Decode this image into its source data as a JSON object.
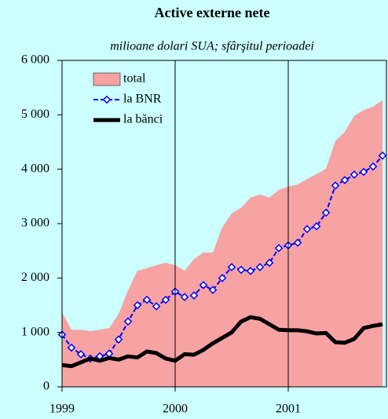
{
  "chart_data": {
    "type": "line",
    "title": "Active externe nete",
    "subtitle": "milioane dolari SUA; sfârşitul perioadei",
    "categories": [
      "1999",
      null,
      null,
      null,
      null,
      null,
      null,
      null,
      null,
      null,
      null,
      null,
      "2000",
      null,
      null,
      null,
      null,
      null,
      null,
      null,
      null,
      null,
      null,
      null,
      "2001",
      null,
      null,
      null,
      null,
      null,
      null,
      null,
      null,
      null,
      null
    ],
    "series": [
      {
        "name": "total",
        "kind": "area",
        "color": "#f7a3a3",
        "values": [
          1370,
          1050,
          1050,
          1025,
          1050,
          1080,
          1340,
          1775,
          2135,
          2180,
          2235,
          2280,
          2240,
          2135,
          2350,
          2470,
          2470,
          2930,
          3190,
          3290,
          3480,
          3535,
          3480,
          3620,
          3680,
          3720,
          3820,
          3910,
          4010,
          4520,
          4690,
          4980,
          5090,
          5150,
          5270
        ]
      },
      {
        "name": "la BNR",
        "kind": "dashed-markers",
        "color": "#0000ff",
        "values": [
          960,
          720,
          600,
          520,
          560,
          610,
          870,
          1200,
          1500,
          1600,
          1480,
          1600,
          1750,
          1650,
          1680,
          1870,
          1780,
          2000,
          2200,
          2150,
          2130,
          2200,
          2280,
          2550,
          2600,
          2650,
          2900,
          2950,
          3200,
          3700,
          3800,
          3900,
          3950,
          4050,
          4250
        ]
      },
      {
        "name": "la bănci",
        "kind": "thick",
        "color": "#000000",
        "values": [
          400,
          380,
          450,
          520,
          480,
          530,
          500,
          560,
          540,
          650,
          620,
          520,
          480,
          600,
          590,
          680,
          800,
          900,
          1000,
          1200,
          1280,
          1250,
          1150,
          1050,
          1040,
          1040,
          1020,
          980,
          990,
          820,
          810,
          880,
          1080,
          1120,
          1150
        ]
      }
    ],
    "ylim": [
      0,
      6000
    ],
    "yticks": [
      0,
      {
        "value": 1000,
        "label": "1 000"
      },
      {
        "value": 2000,
        "label": "2 000"
      },
      {
        "value": 3000,
        "label": "3 000"
      },
      {
        "value": 4000,
        "label": "4 000"
      },
      {
        "value": 5000,
        "label": "5 000"
      },
      {
        "value": 6000,
        "label": "6 000"
      }
    ],
    "grid": "x",
    "legend": "upper-left",
    "background": "#ccffff"
  }
}
